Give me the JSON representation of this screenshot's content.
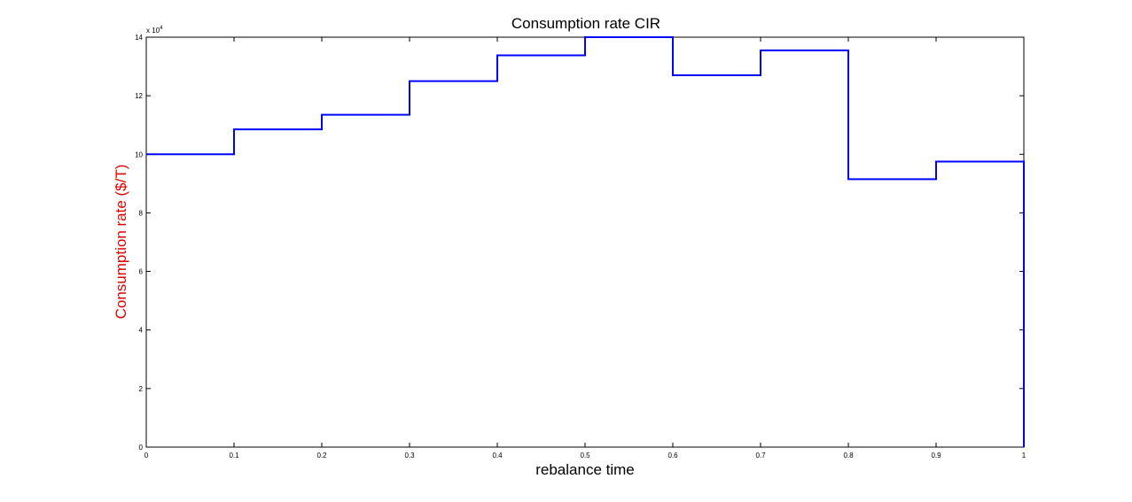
{
  "chart_data": {
    "type": "line",
    "style": "stairs",
    "title": "Consumption rate CIR",
    "xlabel": "rebalance time",
    "ylabel": "Consumption rate ($/T)",
    "ylabel_color": "#dd0000",
    "line_color": "#0000ff",
    "y_multiplier": {
      "base": "x 10",
      "exponent": "4"
    },
    "xlim": [
      0,
      1
    ],
    "ylim": [
      0,
      14
    ],
    "xticks": [
      "0",
      "0.1",
      "0.2",
      "0.3",
      "0.4",
      "0.5",
      "0.6",
      "0.7",
      "0.8",
      "0.9",
      "1"
    ],
    "yticks": [
      "0",
      "2",
      "4",
      "6",
      "8",
      "10",
      "12",
      "14"
    ],
    "grid": false,
    "series": [
      {
        "x": [
          0,
          0.1,
          0.2,
          0.3,
          0.4,
          0.5,
          0.6,
          0.7,
          0.8,
          0.9,
          1
        ],
        "y": [
          10.0,
          10.85,
          11.35,
          12.5,
          13.38,
          14.0,
          12.7,
          13.55,
          9.15,
          9.75,
          0
        ]
      }
    ]
  }
}
